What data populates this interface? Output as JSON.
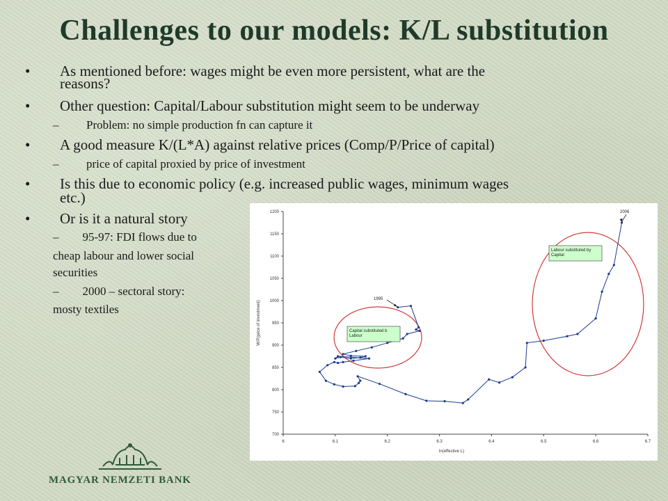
{
  "title": "Challenges to our models: K/L substitution",
  "bullets": [
    {
      "level": 1,
      "marker": "•",
      "text": "As mentioned before: wages might be even more persistent, what are the"
    },
    {
      "level": 1,
      "marker": "",
      "text": "reasons?"
    },
    {
      "level": 1,
      "marker": "•",
      "text": "Other question: Capital/Labour substitution might seem to be underway"
    },
    {
      "level": 2,
      "marker": "–",
      "text": "Problem: no simple production fn can capture it"
    },
    {
      "level": 1,
      "marker": "•",
      "text": "A good measure K/(L*A) against relative prices (Comp/P/Price of capital)"
    },
    {
      "level": 2,
      "marker": "–",
      "text": "price of capital proxied by price of investment"
    },
    {
      "level": 1,
      "marker": "•",
      "text": "Is this due to economic policy (e.g. increased public wages, minimum wages"
    },
    {
      "level": 1,
      "marker": "",
      "text": "etc.)"
    },
    {
      "level": 1,
      "marker": "•",
      "text": "Or is it a natural story"
    }
  ],
  "subnotes": {
    "line1": "95-97: FDI flows due to",
    "line2": "cheap labour and lower social",
    "line3": "securities",
    "line4": "2000 – sectoral story:",
    "line5": "mosty textiles",
    "dash": "–"
  },
  "chart_data": {
    "type": "line",
    "xlabel": "ln(effective L)",
    "ylabel": "W/P(price of investment)",
    "xlim": [
      6.0,
      6.7
    ],
    "ylim": [
      700,
      1200
    ],
    "x_ticks": [
      6,
      6.1,
      6.2,
      6.3,
      6.4,
      6.5,
      6.6,
      6.7
    ],
    "y_ticks": [
      700,
      750,
      800,
      850,
      900,
      950,
      1000,
      1050,
      1100,
      1150,
      1200
    ],
    "grid": false,
    "annotations": [
      {
        "text": "1995",
        "x": 6.22,
        "y": 985
      },
      {
        "text": "2006",
        "x": 6.65,
        "y": 1175
      }
    ],
    "labels": [
      {
        "text": "Capital substituted by Labour"
      },
      {
        "text": "Labour substituted by Capital"
      }
    ],
    "series": [
      {
        "color": "#1a3a8c",
        "x": [
          6.22,
          6.245,
          6.26,
          6.255,
          6.262,
          6.238,
          6.23,
          6.2,
          6.17,
          6.14,
          6.115,
          6.13,
          6.158,
          6.148,
          6.13,
          6.11,
          6.1,
          6.105,
          6.165,
          6.135,
          6.115,
          6.105,
          6.098,
          6.085,
          6.07,
          6.082,
          6.098,
          6.115,
          6.138,
          6.145,
          6.148,
          6.143,
          6.185,
          6.235,
          6.275,
          6.31,
          6.345,
          6.355,
          6.395,
          6.415,
          6.44,
          6.465,
          6.468,
          6.5,
          6.545,
          6.565,
          6.6,
          6.612,
          6.625,
          6.635,
          6.65
        ],
        "y": [
          985,
          988,
          940,
          935,
          932,
          925,
          915,
          905,
          895,
          887,
          880,
          876,
          875,
          872,
          870,
          873,
          870,
          875,
          870,
          865,
          862,
          860,
          862,
          855,
          840,
          820,
          812,
          807,
          808,
          815,
          820,
          830,
          813,
          790,
          775,
          774,
          770,
          778,
          823,
          816,
          828,
          850,
          905,
          910,
          920,
          925,
          960,
          1020,
          1060,
          1080,
          1175
        ]
      }
    ]
  }
}
